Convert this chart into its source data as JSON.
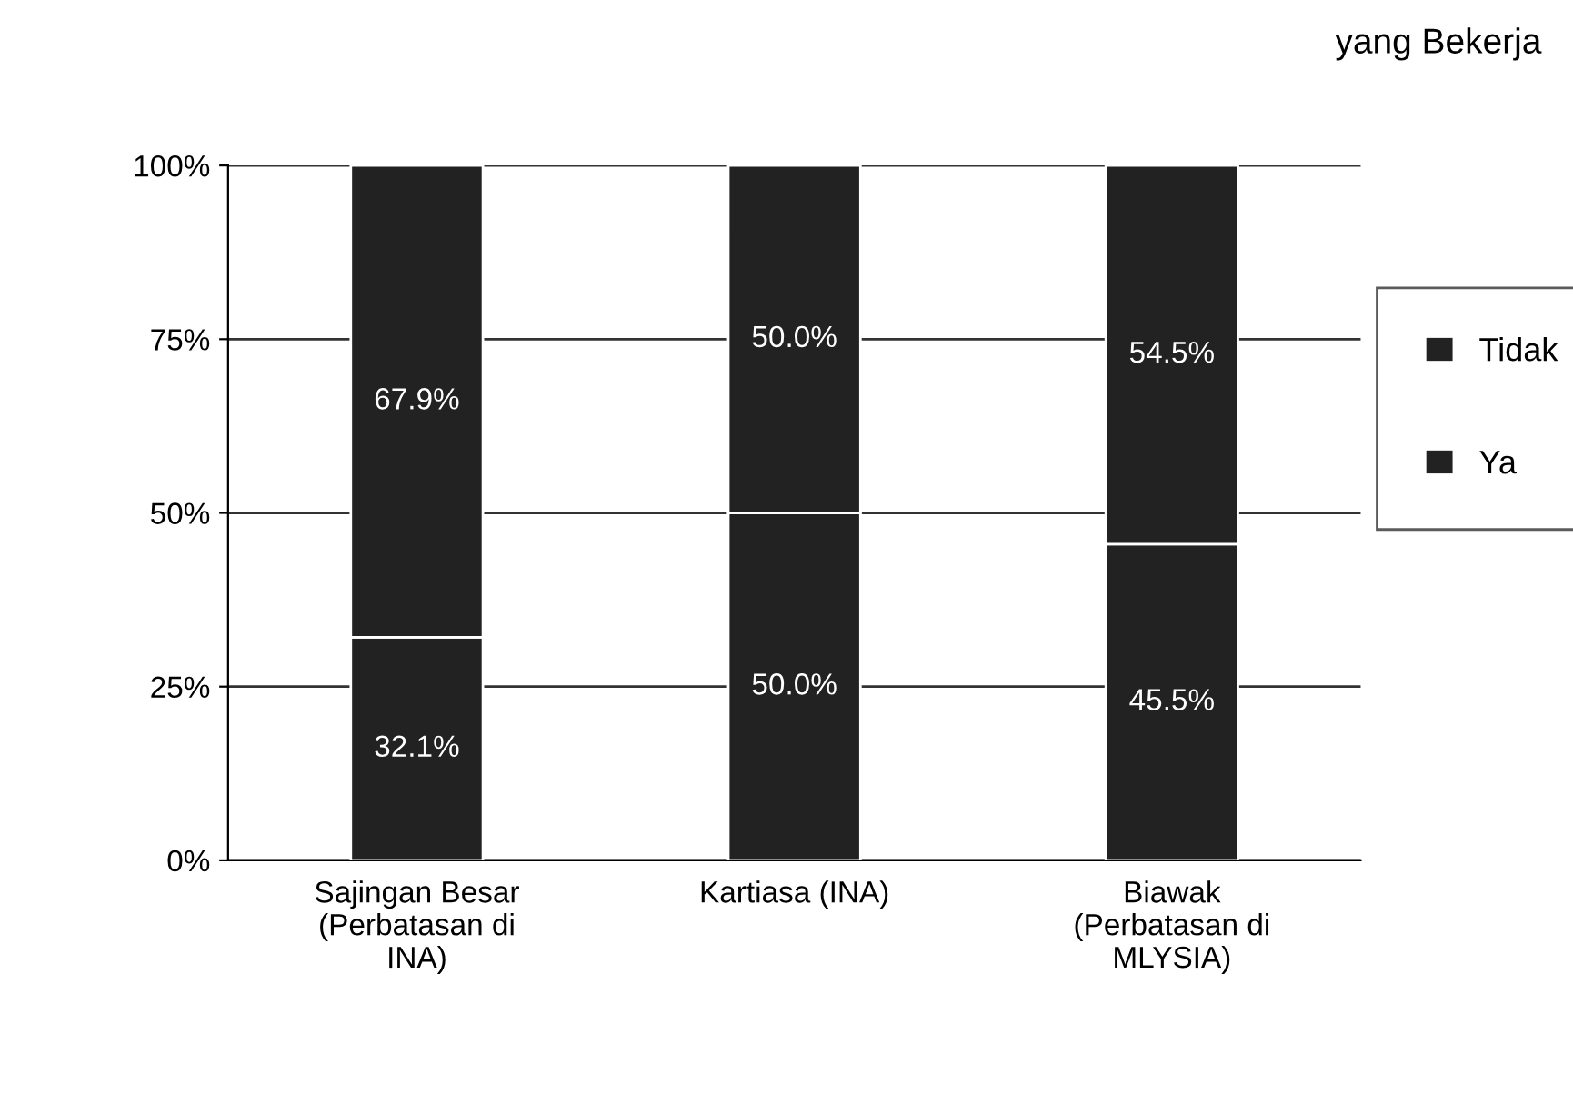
{
  "chart_data": {
    "type": "bar",
    "stacked": true,
    "title": "yang Bekerja",
    "categories": [
      "Sajingan Besar\n(Perbatasan di\nINA)",
      "Kartiasa (INA)",
      "Biawak\n(Perbatasan di\nMLYSIA)"
    ],
    "series": [
      {
        "name": "Ya",
        "color": "#222222",
        "values": [
          32.1,
          50.0,
          45.5
        ],
        "value_labels": [
          "32.1%",
          "50.0%",
          "45.5%"
        ]
      },
      {
        "name": "Tidak",
        "color": "#222222",
        "values": [
          67.9,
          50.0,
          54.5
        ],
        "value_labels": [
          "67.9%",
          "50.0%",
          "54.5%"
        ]
      }
    ],
    "ylim": [
      0,
      100
    ],
    "yticks": [
      {
        "value": 0,
        "label": "0%"
      },
      {
        "value": 25,
        "label": "25%"
      },
      {
        "value": 50,
        "label": "50%"
      },
      {
        "value": 75,
        "label": "75%"
      },
      {
        "value": 100,
        "label": "100%"
      }
    ],
    "grid": "y",
    "legend": "right"
  }
}
